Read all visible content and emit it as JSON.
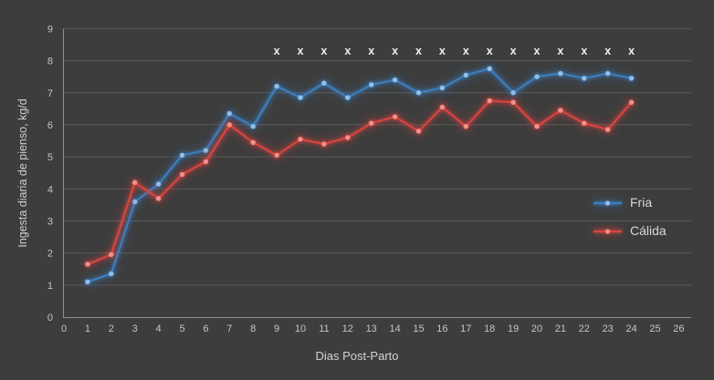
{
  "colors": {
    "background": "#3d3d3d",
    "gridline": "#5a5a5a",
    "axis_line": "#8f8f8f",
    "tick_text": "#c5c5c5",
    "axis_title_text": "#d2d2d2",
    "fria_line": "#3d7ebd",
    "fria_dot": "#92bfe8",
    "calida_line": "#d64541",
    "calida_dot": "#f0918d",
    "significance_marker": "#ededed",
    "legend_text": "#d8d8d8"
  },
  "chart_data": {
    "type": "line",
    "title": "",
    "xlabel": "Dias Post-Parto",
    "ylabel": "Ingesta diaria de pienso, kg/d",
    "xlim": [
      0,
      26
    ],
    "ylim": [
      0,
      9
    ],
    "x_ticks": [
      0,
      1,
      2,
      3,
      4,
      5,
      6,
      7,
      8,
      9,
      10,
      11,
      12,
      13,
      14,
      15,
      16,
      17,
      18,
      19,
      20,
      21,
      22,
      23,
      24,
      25,
      26
    ],
    "y_ticks": [
      0,
      1,
      2,
      3,
      4,
      5,
      6,
      7,
      8,
      9
    ],
    "grid": "horizontal",
    "legend_position": "right-middle",
    "x": [
      1,
      2,
      3,
      4,
      5,
      6,
      7,
      8,
      9,
      10,
      11,
      12,
      13,
      14,
      15,
      16,
      17,
      18,
      19,
      20,
      21,
      22,
      23,
      24
    ],
    "series": [
      {
        "name": "Fria",
        "values": [
          1.1,
          1.35,
          3.6,
          4.15,
          5.05,
          5.2,
          6.35,
          5.95,
          7.2,
          6.85,
          7.3,
          6.85,
          7.25,
          7.4,
          7.0,
          7.15,
          7.55,
          7.75,
          7.0,
          7.5,
          7.6,
          7.45,
          7.6,
          7.45
        ]
      },
      {
        "name": "Cálida",
        "values": [
          1.65,
          1.95,
          4.2,
          3.7,
          4.45,
          4.85,
          6.0,
          5.45,
          5.05,
          5.55,
          5.4,
          5.6,
          6.05,
          6.25,
          5.8,
          6.55,
          5.95,
          6.75,
          6.7,
          5.95,
          6.45,
          6.05,
          5.85,
          6.7
        ]
      }
    ],
    "significance_markers": {
      "symbol": "x",
      "days": [
        9,
        10,
        11,
        12,
        13,
        14,
        15,
        16,
        17,
        18,
        19,
        20,
        21,
        22,
        23,
        24
      ],
      "y_value": 8.3
    }
  }
}
